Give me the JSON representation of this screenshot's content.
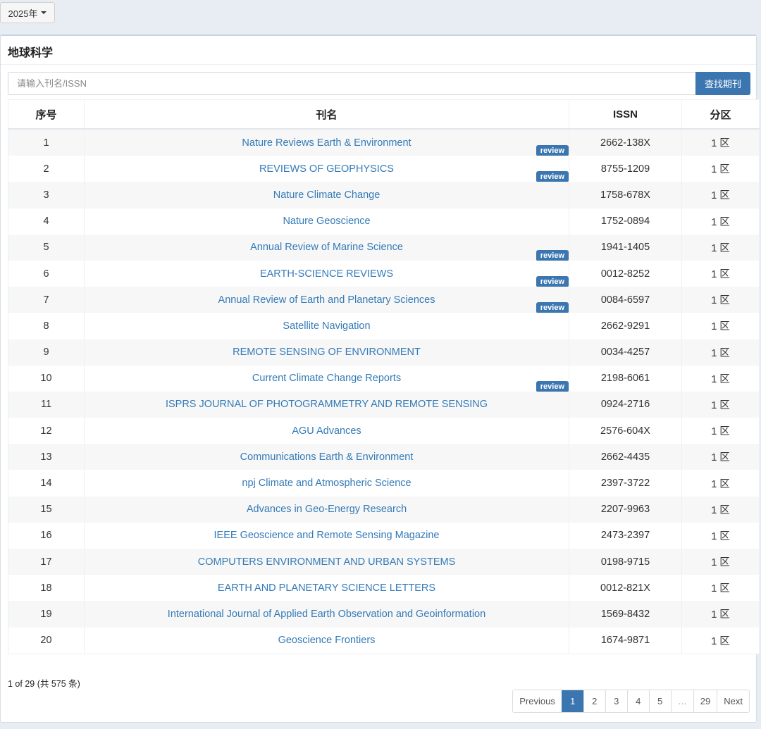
{
  "year_filter": {
    "label": "2025年"
  },
  "panel": {
    "title": "地球科学",
    "search": {
      "placeholder": "请输入刊名/ISSN",
      "value": "",
      "button_label": "查找期刊"
    }
  },
  "table": {
    "columns": [
      "序号",
      "刊名",
      "ISSN",
      "分区"
    ],
    "rows": [
      {
        "index": "1",
        "title": "Nature Reviews Earth & Environment",
        "review": "review",
        "issn": "2662-138X",
        "zone": "1 区"
      },
      {
        "index": "2",
        "title": "REVIEWS OF GEOPHYSICS",
        "review": "review",
        "issn": "8755-1209",
        "zone": "1 区"
      },
      {
        "index": "3",
        "title": "Nature Climate Change",
        "review": "",
        "issn": "1758-678X",
        "zone": "1 区"
      },
      {
        "index": "4",
        "title": "Nature Geoscience",
        "review": "",
        "issn": "1752-0894",
        "zone": "1 区"
      },
      {
        "index": "5",
        "title": "Annual Review of Marine Science",
        "review": "review",
        "issn": "1941-1405",
        "zone": "1 区"
      },
      {
        "index": "6",
        "title": "EARTH-SCIENCE REVIEWS",
        "review": "review",
        "issn": "0012-8252",
        "zone": "1 区"
      },
      {
        "index": "7",
        "title": "Annual Review of Earth and Planetary Sciences",
        "review": "review",
        "issn": "0084-6597",
        "zone": "1 区"
      },
      {
        "index": "8",
        "title": "Satellite Navigation",
        "review": "",
        "issn": "2662-9291",
        "zone": "1 区"
      },
      {
        "index": "9",
        "title": "REMOTE SENSING OF ENVIRONMENT",
        "review": "",
        "issn": "0034-4257",
        "zone": "1 区"
      },
      {
        "index": "10",
        "title": "Current Climate Change Reports",
        "review": "review",
        "issn": "2198-6061",
        "zone": "1 区"
      },
      {
        "index": "11",
        "title": "ISPRS JOURNAL OF PHOTOGRAMMETRY AND REMOTE SENSING",
        "review": "",
        "issn": "0924-2716",
        "zone": "1 区"
      },
      {
        "index": "12",
        "title": "AGU Advances",
        "review": "",
        "issn": "2576-604X",
        "zone": "1 区"
      },
      {
        "index": "13",
        "title": "Communications Earth & Environment",
        "review": "",
        "issn": "2662-4435",
        "zone": "1 区"
      },
      {
        "index": "14",
        "title": "npj Climate and Atmospheric Science",
        "review": "",
        "issn": "2397-3722",
        "zone": "1 区"
      },
      {
        "index": "15",
        "title": "Advances in Geo-Energy Research",
        "review": "",
        "issn": "2207-9963",
        "zone": "1 区"
      },
      {
        "index": "16",
        "title": "IEEE Geoscience and Remote Sensing Magazine",
        "review": "",
        "issn": "2473-2397",
        "zone": "1 区"
      },
      {
        "index": "17",
        "title": "COMPUTERS ENVIRONMENT AND URBAN SYSTEMS",
        "review": "",
        "issn": "0198-9715",
        "zone": "1 区"
      },
      {
        "index": "18",
        "title": "EARTH AND PLANETARY SCIENCE LETTERS",
        "review": "",
        "issn": "0012-821X",
        "zone": "1 区"
      },
      {
        "index": "19",
        "title": "International Journal of Applied Earth Observation and Geoinformation",
        "review": "",
        "issn": "1569-8432",
        "zone": "1 区"
      },
      {
        "index": "20",
        "title": "Geoscience Frontiers",
        "review": "",
        "issn": "1674-9871",
        "zone": "1 区"
      }
    ]
  },
  "pagination": {
    "info": "1 of 29 (共 575 条)",
    "previous_label": "Previous",
    "next_label": "Next",
    "pages": [
      "1",
      "2",
      "3",
      "4",
      "5",
      "…",
      "29"
    ],
    "current": "1"
  },
  "colors": {
    "accent": "#3b76b0",
    "link": "#337ab7",
    "background": "#e8ecf3"
  }
}
